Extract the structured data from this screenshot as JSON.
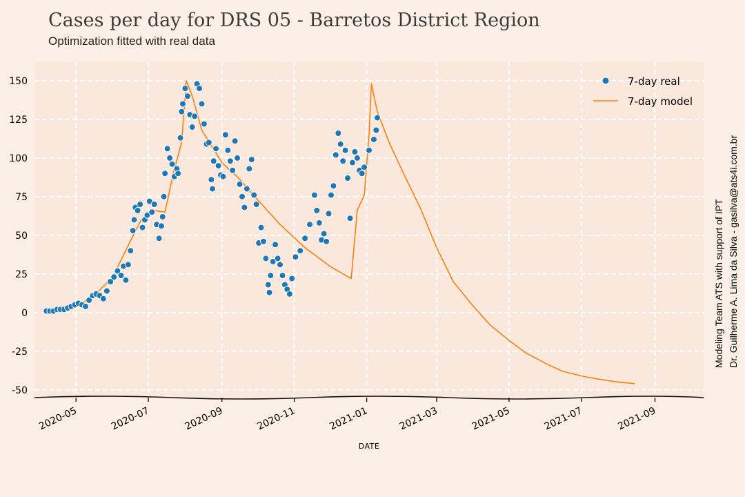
{
  "title": "Cases per day for DRS 05 - Barretos District Region",
  "subtitle": "Optimization fitted with real data",
  "credit_line1": "Modeling Team ATS with support of IPT",
  "credit_line2": "Dr. Guilherme A. Lima da Silva - gasilva@ats4i.com.br",
  "colors": {
    "background": "#fcf0e6",
    "plot_area": "#fae8dc",
    "real": "#1f77b4",
    "model": "#ff7f0e",
    "grid": "#ffffff"
  },
  "chart_data": {
    "type": "line",
    "title": "Cases per day for DRS 05 - Barretos District Region",
    "subtitle": "Optimization fitted with real data",
    "xlabel": "DATE",
    "ylabel": "",
    "xlim": [
      "2020-03-27",
      "2021-10-12"
    ],
    "ylim": [
      -55,
      162
    ],
    "x_ticks": [
      "2020-05-01",
      "2020-07-01",
      "2020-09-01",
      "2020-11-01",
      "2021-01-01",
      "2021-03-01",
      "2021-05-01",
      "2021-07-01",
      "2021-09-01"
    ],
    "x_tick_labels": [
      "2020-05",
      "2020-07",
      "2020-09",
      "2020-11",
      "2021-01",
      "2021-03",
      "2021-05",
      "2021-07",
      "2021-09"
    ],
    "y_ticks": [
      150,
      125,
      100,
      75,
      50,
      25,
      0,
      -25,
      -50
    ],
    "y_tick_labels": [
      "150",
      "125",
      "100",
      "75",
      "50",
      "25",
      "0",
      "-25",
      "-50"
    ],
    "grid": true,
    "legend_position": "top-right",
    "series": [
      {
        "name": "7-day real",
        "style": "scatter",
        "color": "#1f77b4",
        "points": [
          [
            "2020-04-06",
            1
          ],
          [
            "2020-04-09",
            1
          ],
          [
            "2020-04-12",
            1
          ],
          [
            "2020-04-15",
            2
          ],
          [
            "2020-04-18",
            2
          ],
          [
            "2020-04-21",
            2
          ],
          [
            "2020-04-24",
            3
          ],
          [
            "2020-04-27",
            4
          ],
          [
            "2020-04-30",
            5
          ],
          [
            "2020-05-03",
            6
          ],
          [
            "2020-05-06",
            5
          ],
          [
            "2020-05-09",
            4
          ],
          [
            "2020-05-12",
            8
          ],
          [
            "2020-05-15",
            11
          ],
          [
            "2020-05-18",
            12
          ],
          [
            "2020-05-21",
            11
          ],
          [
            "2020-05-24",
            9
          ],
          [
            "2020-05-27",
            14
          ],
          [
            "2020-05-30",
            20
          ],
          [
            "2020-06-02",
            23
          ],
          [
            "2020-06-05",
            27
          ],
          [
            "2020-06-08",
            24
          ],
          [
            "2020-06-10",
            30
          ],
          [
            "2020-06-12",
            21
          ],
          [
            "2020-06-14",
            31
          ],
          [
            "2020-06-16",
            40
          ],
          [
            "2020-06-18",
            53
          ],
          [
            "2020-06-19",
            60
          ],
          [
            "2020-06-20",
            68
          ],
          [
            "2020-06-22",
            66
          ],
          [
            "2020-06-24",
            70
          ],
          [
            "2020-06-26",
            55
          ],
          [
            "2020-06-28",
            60
          ],
          [
            "2020-06-30",
            63
          ],
          [
            "2020-07-02",
            72
          ],
          [
            "2020-07-04",
            65
          ],
          [
            "2020-07-06",
            70
          ],
          [
            "2020-07-08",
            57
          ],
          [
            "2020-07-10",
            48
          ],
          [
            "2020-07-12",
            56
          ],
          [
            "2020-07-13",
            62
          ],
          [
            "2020-07-14",
            75
          ],
          [
            "2020-07-15",
            90
          ],
          [
            "2020-07-17",
            106
          ],
          [
            "2020-07-19",
            100
          ],
          [
            "2020-07-21",
            96
          ],
          [
            "2020-07-23",
            88
          ],
          [
            "2020-07-25",
            93
          ],
          [
            "2020-07-26",
            90
          ],
          [
            "2020-07-28",
            113
          ],
          [
            "2020-07-29",
            130
          ],
          [
            "2020-07-30",
            135
          ],
          [
            "2020-08-01",
            145
          ],
          [
            "2020-08-03",
            140
          ],
          [
            "2020-08-05",
            128
          ],
          [
            "2020-08-07",
            120
          ],
          [
            "2020-08-09",
            127
          ],
          [
            "2020-08-11",
            148
          ],
          [
            "2020-08-13",
            145
          ],
          [
            "2020-08-15",
            135
          ],
          [
            "2020-08-17",
            122
          ],
          [
            "2020-08-19",
            109
          ],
          [
            "2020-08-21",
            110
          ],
          [
            "2020-08-23",
            86
          ],
          [
            "2020-08-24",
            80
          ],
          [
            "2020-08-25",
            98
          ],
          [
            "2020-08-27",
            106
          ],
          [
            "2020-08-29",
            95
          ],
          [
            "2020-08-31",
            89
          ],
          [
            "2020-09-02",
            88
          ],
          [
            "2020-09-04",
            115
          ],
          [
            "2020-09-06",
            105
          ],
          [
            "2020-09-08",
            98
          ],
          [
            "2020-09-10",
            92
          ],
          [
            "2020-09-12",
            111
          ],
          [
            "2020-09-14",
            100
          ],
          [
            "2020-09-16",
            83
          ],
          [
            "2020-09-18",
            75
          ],
          [
            "2020-09-20",
            68
          ],
          [
            "2020-09-22",
            80
          ],
          [
            "2020-09-24",
            93
          ],
          [
            "2020-09-26",
            99
          ],
          [
            "2020-09-28",
            76
          ],
          [
            "2020-09-30",
            70
          ],
          [
            "2020-10-02",
            45
          ],
          [
            "2020-10-04",
            55
          ],
          [
            "2020-10-06",
            46
          ],
          [
            "2020-10-08",
            35
          ],
          [
            "2020-10-10",
            18
          ],
          [
            "2020-10-11",
            13
          ],
          [
            "2020-10-12",
            24
          ],
          [
            "2020-10-14",
            33
          ],
          [
            "2020-10-16",
            44
          ],
          [
            "2020-10-18",
            35
          ],
          [
            "2020-10-20",
            31
          ],
          [
            "2020-10-22",
            24
          ],
          [
            "2020-10-24",
            18
          ],
          [
            "2020-10-26",
            15
          ],
          [
            "2020-10-28",
            12
          ],
          [
            "2020-10-30",
            22
          ],
          [
            "2020-11-02",
            36
          ],
          [
            "2020-11-06",
            40
          ],
          [
            "2020-11-10",
            48
          ],
          [
            "2020-11-14",
            57
          ],
          [
            "2020-11-18",
            76
          ],
          [
            "2020-11-20",
            66
          ],
          [
            "2020-11-22",
            58
          ],
          [
            "2020-11-24",
            47
          ],
          [
            "2020-11-26",
            51
          ],
          [
            "2020-11-28",
            46
          ],
          [
            "2020-11-30",
            64
          ],
          [
            "2020-12-02",
            76
          ],
          [
            "2020-12-04",
            82
          ],
          [
            "2020-12-06",
            102
          ],
          [
            "2020-12-08",
            116
          ],
          [
            "2020-12-10",
            109
          ],
          [
            "2020-12-12",
            98
          ],
          [
            "2020-12-14",
            105
          ],
          [
            "2020-12-16",
            87
          ],
          [
            "2020-12-18",
            61
          ],
          [
            "2020-12-20",
            97
          ],
          [
            "2020-12-22",
            104
          ],
          [
            "2020-12-24",
            100
          ],
          [
            "2020-12-26",
            92
          ],
          [
            "2020-12-28",
            90
          ],
          [
            "2020-12-30",
            94
          ],
          [
            "2021-01-03",
            105
          ],
          [
            "2021-01-07",
            112
          ],
          [
            "2021-01-09",
            118
          ],
          [
            "2021-01-10",
            126
          ]
        ]
      },
      {
        "name": "7-day model",
        "style": "line",
        "color": "#ff7f0e",
        "points": [
          [
            "2020-04-06",
            0
          ],
          [
            "2020-04-20",
            1
          ],
          [
            "2020-05-01",
            4
          ],
          [
            "2020-05-15",
            10
          ],
          [
            "2020-06-01",
            23
          ],
          [
            "2020-06-15",
            45
          ],
          [
            "2020-06-25",
            60
          ],
          [
            "2020-07-05",
            66
          ],
          [
            "2020-07-15",
            65
          ],
          [
            "2020-07-22",
            90
          ],
          [
            "2020-07-29",
            110
          ],
          [
            "2020-08-02",
            150
          ],
          [
            "2020-08-07",
            140
          ],
          [
            "2020-08-15",
            118
          ],
          [
            "2020-09-01",
            97
          ],
          [
            "2020-09-15",
            87
          ],
          [
            "2020-10-01",
            73
          ],
          [
            "2020-10-20",
            57
          ],
          [
            "2020-11-10",
            42
          ],
          [
            "2020-12-01",
            30
          ],
          [
            "2020-12-12",
            25
          ],
          [
            "2020-12-19",
            22
          ],
          [
            "2020-12-24",
            66
          ],
          [
            "2020-12-30",
            76
          ],
          [
            "2021-01-03",
            115
          ],
          [
            "2021-01-05",
            148
          ],
          [
            "2021-01-10",
            130
          ],
          [
            "2021-01-20",
            110
          ],
          [
            "2021-02-01",
            90
          ],
          [
            "2021-02-15",
            68
          ],
          [
            "2021-03-01",
            42
          ],
          [
            "2021-03-15",
            20
          ],
          [
            "2021-04-01",
            4
          ],
          [
            "2021-04-15",
            -8
          ],
          [
            "2021-05-01",
            -18
          ],
          [
            "2021-05-15",
            -26
          ],
          [
            "2021-06-01",
            -33
          ],
          [
            "2021-06-15",
            -38
          ],
          [
            "2021-07-01",
            -41
          ],
          [
            "2021-07-15",
            -43
          ],
          [
            "2021-08-01",
            -45
          ],
          [
            "2021-08-15",
            -46
          ]
        ]
      }
    ]
  }
}
